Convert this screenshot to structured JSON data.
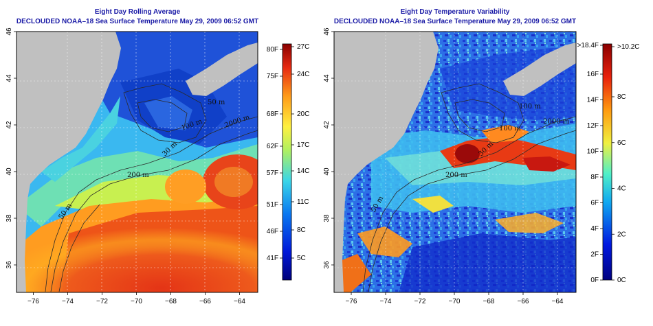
{
  "panels": [
    {
      "id": "left",
      "title_line1": "Eight Day Rolling Average",
      "title_line2": "DECLOUDED NOAA–18 Sea Surface Temperature May 29, 2009 06:52 GMT",
      "lon_ticks": [
        "−76",
        "−74",
        "−72",
        "−70",
        "−68",
        "−66",
        "−64"
      ],
      "lat_ticks": [
        "46",
        "44",
        "42",
        "40",
        "38",
        "36"
      ],
      "contour_labels": [
        "50 m",
        "200 m",
        "2000 m",
        "100 m",
        "30 m",
        "50 m"
      ],
      "colorbar": {
        "type": "temperature",
        "left_labels": [
          "80F",
          "75F",
          "68F",
          "62F",
          "57F",
          "51F",
          "46F",
          "41F"
        ],
        "right_labels": [
          "27C",
          "24C",
          "20C",
          "17C",
          "14C",
          "11C",
          "8C",
          "5C"
        ]
      }
    },
    {
      "id": "right",
      "title_line1": "Eight Day Temperature Variability",
      "title_line2": "DECLOUDED NOAA–18 Sea Surface Temperature May 29, 2009 06:52 GMT",
      "lon_ticks": [
        "−76",
        "−74",
        "−72",
        "−70",
        "−68",
        "−66",
        "−64"
      ],
      "lat_ticks": [
        "46",
        "44",
        "42",
        "40",
        "38",
        "36"
      ],
      "contour_labels": [
        "200 m",
        "100 m",
        "100 m",
        "2000 m",
        "30 m",
        "50 m"
      ],
      "colorbar": {
        "type": "variability",
        "left_labels": [
          ">18.4F",
          "16F",
          "14F",
          "12F",
          "10F",
          "8F",
          "6F",
          "4F",
          "2F",
          "0F"
        ],
        "right_labels": [
          ">10.2C",
          "8C",
          "6C",
          "4C",
          "2C",
          "0C"
        ]
      }
    }
  ],
  "colors": {
    "land": "#c0c0c0",
    "title": "#1a1aa6",
    "temp_cold": "#1432c8",
    "temp_mid": "#ffe040",
    "temp_hot": "#e02818",
    "var_low": "#1e3cdc",
    "var_high": "#a00000"
  }
}
